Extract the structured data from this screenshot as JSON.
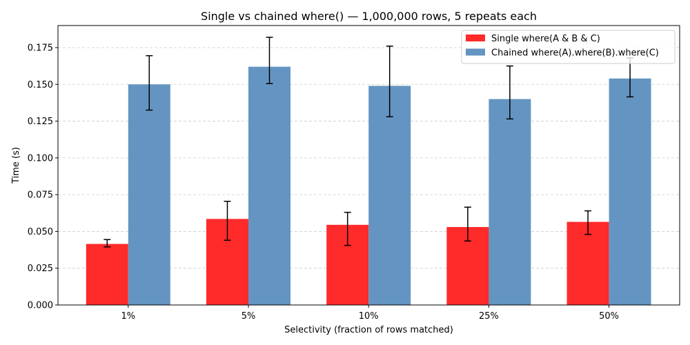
{
  "chart_data": {
    "type": "bar",
    "title": "Single vs chained where() — 1,000,000 rows, 5 repeats each",
    "xlabel": "Selectivity (fraction of rows matched)",
    "ylabel": "Time (s)",
    "categories": [
      "1%",
      "5%",
      "10%",
      "25%",
      "50%"
    ],
    "ylim": [
      0,
      0.19
    ],
    "yticks": [
      0.0,
      0.025,
      0.05,
      0.075,
      0.1,
      0.125,
      0.15,
      0.175
    ],
    "ytick_labels": [
      "0.000",
      "0.025",
      "0.050",
      "0.075",
      "0.100",
      "0.125",
      "0.150",
      "0.175"
    ],
    "grid": "y-dashed",
    "legend_position": "top-right",
    "series": [
      {
        "name": "Single where(A & B & C)",
        "color": "#ff2a2a",
        "values": [
          0.0415,
          0.0585,
          0.0545,
          0.053,
          0.0565
        ],
        "err_low": [
          0.0395,
          0.044,
          0.0405,
          0.0435,
          0.048
        ],
        "err_high": [
          0.0445,
          0.0705,
          0.063,
          0.0665,
          0.064
        ]
      },
      {
        "name": "Chained where(A).where(B).where(C)",
        "color": "#6495c2",
        "values": [
          0.15,
          0.162,
          0.149,
          0.14,
          0.154
        ],
        "err_low": [
          0.1325,
          0.1505,
          0.128,
          0.1265,
          0.1415
        ],
        "err_high": [
          0.1695,
          0.182,
          0.176,
          0.1625,
          0.168
        ]
      }
    ]
  }
}
